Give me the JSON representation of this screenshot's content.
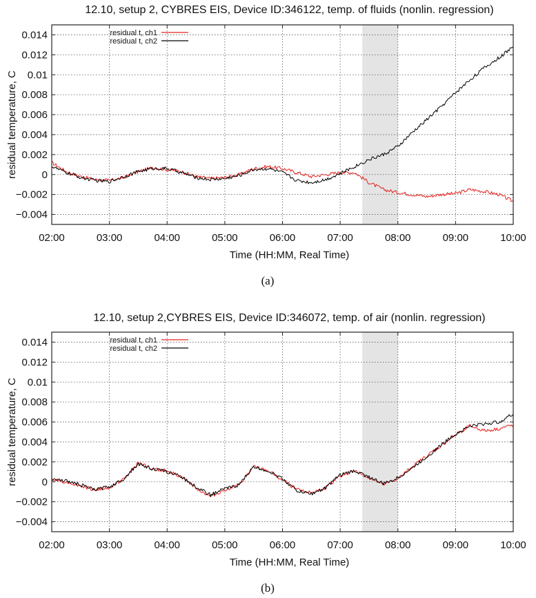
{
  "chart_data": [
    {
      "type": "line",
      "title": "12.10, setup 2, CYBRES EIS, Device ID:346122, temp. of fluids (nonlin. regression)",
      "xlabel": "Time (HH:MM, Real Time)",
      "ylabel": "residual temperature, C",
      "caption": "(a)",
      "x_tick_labels": [
        "02:00",
        "03:00",
        "04:00",
        "05:00",
        "06:00",
        "07:00",
        "08:00",
        "09:00",
        "10:00"
      ],
      "y_tick_labels": [
        "0.014",
        "0.012",
        "0.01",
        "0.008",
        "0.006",
        "0.004",
        "0.002",
        "0",
        "−0.002",
        "−0.004"
      ],
      "xlim": [
        "02:00",
        "10:00"
      ],
      "ylim": [
        -0.005,
        0.015
      ],
      "grid": true,
      "legend_position": "top-left",
      "shaded_region": {
        "x": [
          "07:23",
          "08:00"
        ],
        "color": "#e4e4e4"
      },
      "series": [
        {
          "name": "residual t, ch1",
          "color": "#e8201c",
          "x": [
            "02:00",
            "02:15",
            "02:30",
            "02:45",
            "03:00",
            "03:15",
            "03:30",
            "03:45",
            "04:00",
            "04:15",
            "04:30",
            "04:45",
            "05:00",
            "05:15",
            "05:30",
            "05:45",
            "06:00",
            "06:15",
            "06:30",
            "06:45",
            "07:00",
            "07:15",
            "07:30",
            "07:45",
            "08:00",
            "08:15",
            "08:30",
            "08:45",
            "09:00",
            "09:15",
            "09:30",
            "09:45",
            "10:00"
          ],
          "y": [
            0.0012,
            0.0003,
            -0.0002,
            -0.0005,
            -0.0006,
            -0.0003,
            0.0003,
            0.0007,
            0.0005,
            0.0003,
            -0.0002,
            -0.0004,
            -0.0003,
            0.0,
            0.0006,
            0.0008,
            0.0006,
            0.0002,
            -0.0002,
            0.0,
            0.0002,
            0.0002,
            -0.0008,
            -0.0015,
            -0.0018,
            -0.002,
            -0.0022,
            -0.002,
            -0.0019,
            -0.0015,
            -0.0017,
            -0.002,
            -0.0027
          ]
        },
        {
          "name": "residual t, ch2",
          "color": "#000000",
          "x": [
            "02:00",
            "02:15",
            "02:30",
            "02:45",
            "03:00",
            "03:15",
            "03:30",
            "03:45",
            "04:00",
            "04:15",
            "04:30",
            "04:45",
            "05:00",
            "05:15",
            "05:30",
            "05:45",
            "06:00",
            "06:15",
            "06:30",
            "06:45",
            "07:00",
            "07:15",
            "07:30",
            "07:45",
            "08:00",
            "08:15",
            "08:30",
            "08:45",
            "09:00",
            "09:15",
            "09:30",
            "09:45",
            "10:00"
          ],
          "y": [
            0.0008,
            0.0002,
            -0.0003,
            -0.0006,
            -0.0007,
            -0.0002,
            0.0003,
            0.0006,
            0.0006,
            0.0002,
            -0.0003,
            -0.0005,
            -0.0004,
            -0.0001,
            0.0005,
            0.0006,
            0.0002,
            -0.0006,
            -0.0008,
            -0.0005,
            0.0001,
            0.0008,
            0.0015,
            0.002,
            0.0028,
            0.0042,
            0.0055,
            0.0068,
            0.0082,
            0.0095,
            0.0107,
            0.0117,
            0.0128
          ]
        }
      ]
    },
    {
      "type": "line",
      "title": "12.10, setup 2,CYBRES EIS, Device ID:346072, temp. of air (nonlin. regression)",
      "xlabel": "Time (HH:MM, Real Time)",
      "ylabel": "residual temperature, C",
      "caption": "(b)",
      "x_tick_labels": [
        "02:00",
        "03:00",
        "04:00",
        "05:00",
        "06:00",
        "07:00",
        "08:00",
        "09:00",
        "10:00"
      ],
      "y_tick_labels": [
        "0.014",
        "0.012",
        "0.01",
        "0.008",
        "0.006",
        "0.004",
        "0.002",
        "0",
        "−0.002",
        "−0.004"
      ],
      "xlim": [
        "02:00",
        "10:00"
      ],
      "ylim": [
        -0.005,
        0.015
      ],
      "grid": true,
      "legend_position": "top-left",
      "shaded_region": {
        "x": [
          "07:23",
          "08:00"
        ],
        "color": "#e4e4e4"
      },
      "series": [
        {
          "name": "residual t, ch1",
          "color": "#e8201c",
          "x": [
            "02:00",
            "02:15",
            "02:30",
            "02:45",
            "03:00",
            "03:15",
            "03:30",
            "03:45",
            "04:00",
            "04:15",
            "04:30",
            "04:45",
            "05:00",
            "05:15",
            "05:30",
            "05:45",
            "06:00",
            "06:15",
            "06:30",
            "06:45",
            "07:00",
            "07:15",
            "07:30",
            "07:45",
            "08:00",
            "08:15",
            "08:30",
            "08:45",
            "09:00",
            "09:15",
            "09:30",
            "09:45",
            "10:00"
          ],
          "y": [
            0.0002,
            0.0,
            -0.0004,
            -0.0008,
            -0.0006,
            0.0003,
            0.0019,
            0.0013,
            0.0011,
            0.0005,
            -0.0006,
            -0.0015,
            -0.0008,
            -0.0003,
            0.0015,
            0.0011,
            0.0002,
            -0.0008,
            -0.0011,
            -0.0006,
            0.0006,
            0.0011,
            0.0004,
            -0.0003,
            0.0003,
            0.0015,
            0.0026,
            0.0036,
            0.0047,
            0.0056,
            0.0051,
            0.0053,
            0.0057
          ]
        },
        {
          "name": "residual t, ch2",
          "color": "#000000",
          "x": [
            "02:00",
            "02:15",
            "02:30",
            "02:45",
            "03:00",
            "03:15",
            "03:30",
            "03:45",
            "04:00",
            "04:15",
            "04:30",
            "04:45",
            "05:00",
            "05:15",
            "05:30",
            "05:45",
            "06:00",
            "06:15",
            "06:30",
            "06:45",
            "07:00",
            "07:15",
            "07:30",
            "07:45",
            "08:00",
            "08:15",
            "08:30",
            "08:45",
            "09:00",
            "09:15",
            "09:30",
            "09:45",
            "10:00"
          ],
          "y": [
            0.0003,
            0.0001,
            -0.0003,
            -0.0008,
            -0.0005,
            0.0003,
            0.0018,
            0.0013,
            0.001,
            0.0005,
            -0.0005,
            -0.0013,
            -0.0007,
            -0.0003,
            0.0015,
            0.0011,
            0.0003,
            -0.0009,
            -0.0012,
            -0.0006,
            0.0007,
            0.0011,
            0.0005,
            -0.0002,
            0.0004,
            0.0014,
            0.0025,
            0.0037,
            0.0048,
            0.0056,
            0.0058,
            0.006,
            0.0068
          ]
        }
      ]
    }
  ]
}
